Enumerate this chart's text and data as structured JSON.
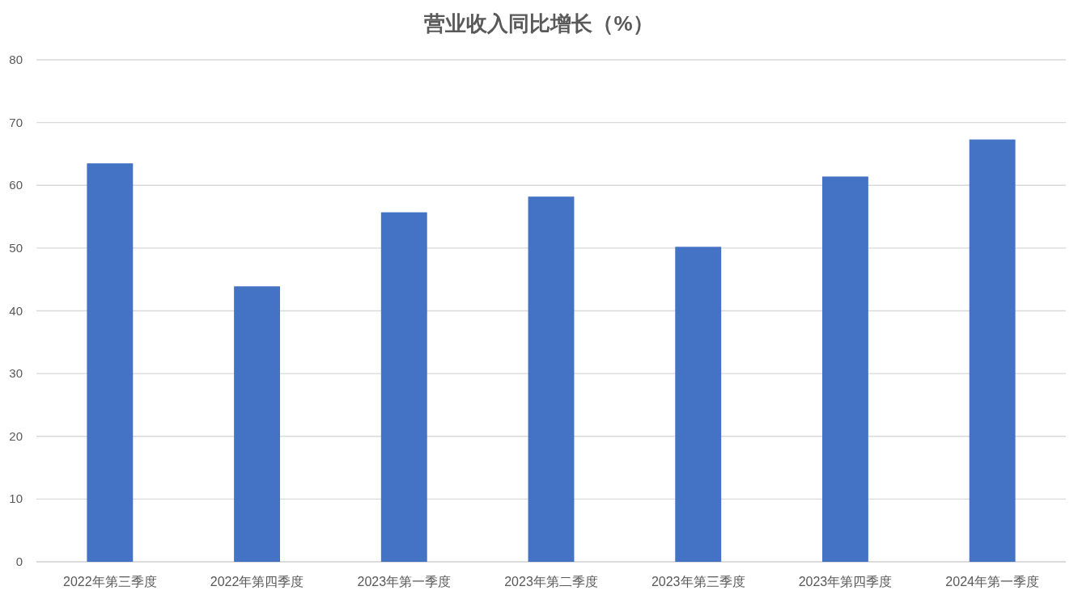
{
  "chart_data": {
    "type": "bar",
    "title": "营业收入同比增长（%）",
    "categories": [
      "2022年第三季度",
      "2022年第四季度",
      "2023年第一季度",
      "2023年第二季度",
      "2023年第三季度",
      "2023年第四季度",
      "2024年第一季度"
    ],
    "values": [
      63.5,
      43.9,
      55.7,
      58.2,
      50.2,
      61.4,
      67.3
    ],
    "color": "#4472c4",
    "ylim": [
      0,
      80
    ],
    "yticks": [
      0,
      10,
      20,
      30,
      40,
      50,
      60,
      70,
      80
    ],
    "grid": "y"
  }
}
